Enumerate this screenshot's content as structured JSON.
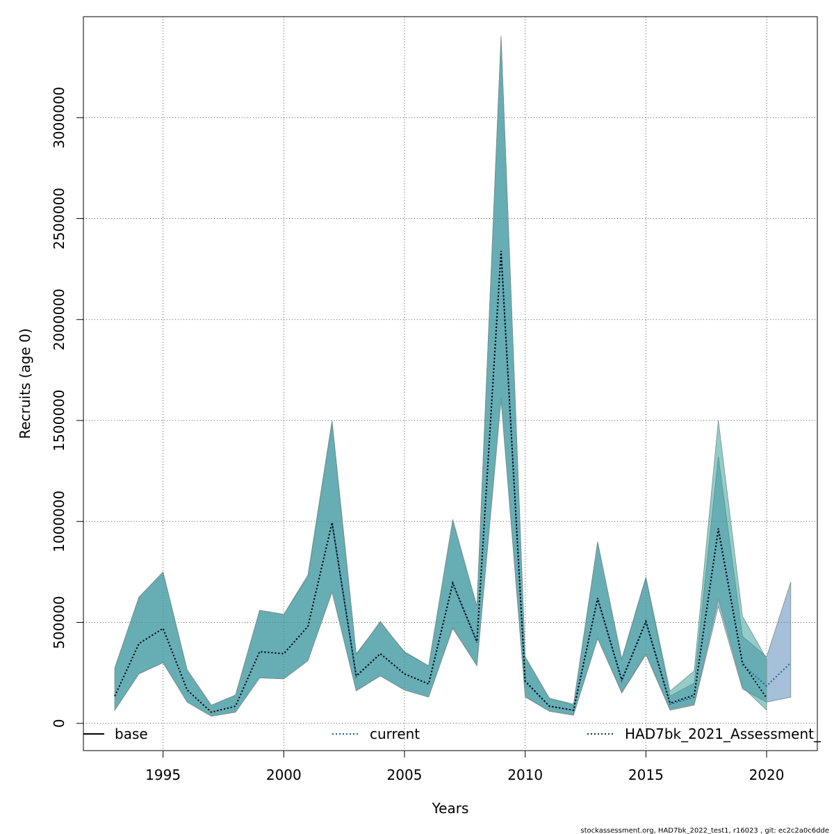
{
  "chart_data": {
    "type": "area",
    "title": "",
    "xlabel": "Years",
    "ylabel": "Recruits (age 0)",
    "xlim": [
      1991.7,
      2022.1
    ],
    "ylim": [
      -135000,
      3500000
    ],
    "x_ticks": [
      1995,
      2000,
      2005,
      2010,
      2015,
      2020
    ],
    "y_ticks": [
      0,
      500000,
      1000000,
      1500000,
      2000000,
      2500000,
      3000000
    ],
    "grid": true,
    "legend_position": "bottom",
    "series": [
      {
        "name": "base",
        "color": "#2a9a8f",
        "line_style": "dotted",
        "x": [
          1993,
          1994,
          1995,
          1996,
          1997,
          1998,
          1999,
          2000,
          2001,
          2002,
          2003,
          2004,
          2005,
          2006,
          2007,
          2008,
          2009,
          2010,
          2011,
          2012,
          2013,
          2014,
          2015,
          2016,
          2017,
          2018,
          2019,
          2020
        ],
        "values": [
          135000,
          395000,
          470000,
          165000,
          55000,
          85000,
          355000,
          345000,
          480000,
          995000,
          235000,
          345000,
          245000,
          195000,
          695000,
          405000,
          2340000,
          210000,
          85000,
          65000,
          620000,
          215000,
          505000,
          100000,
          140000,
          965000,
          300000,
          125000
        ],
        "lower": [
          65000,
          245000,
          300000,
          105000,
          35000,
          55000,
          225000,
          220000,
          310000,
          650000,
          165000,
          235000,
          165000,
          130000,
          475000,
          285000,
          1610000,
          135000,
          60000,
          42000,
          420000,
          155000,
          345000,
          70000,
          95000,
          615000,
          180000,
          65000
        ],
        "upper": [
          275000,
          625000,
          750000,
          265000,
          90000,
          140000,
          560000,
          540000,
          735000,
          1500000,
          345000,
          500000,
          355000,
          285000,
          1005000,
          580000,
          3405000,
          330000,
          125000,
          95000,
          895000,
          320000,
          725000,
          160000,
          260000,
          1500000,
          530000,
          320000
        ]
      },
      {
        "name": "current",
        "color": "#5b84b1",
        "line_style": "dotted",
        "x": [
          1993,
          1994,
          1995,
          1996,
          1997,
          1998,
          1999,
          2000,
          2001,
          2002,
          2003,
          2004,
          2005,
          2006,
          2007,
          2008,
          2009,
          2010,
          2011,
          2012,
          2013,
          2014,
          2015,
          2016,
          2017,
          2018,
          2019,
          2020,
          2021
        ],
        "values": [
          135000,
          395000,
          470000,
          165000,
          55000,
          85000,
          355000,
          345000,
          480000,
          990000,
          230000,
          345000,
          245000,
          195000,
          690000,
          400000,
          2330000,
          205000,
          85000,
          65000,
          615000,
          210000,
          500000,
          95000,
          130000,
          955000,
          290000,
          185000,
          300000
        ],
        "lower": [
          65000,
          245000,
          300000,
          105000,
          35000,
          55000,
          225000,
          220000,
          310000,
          650000,
          160000,
          235000,
          165000,
          130000,
          470000,
          285000,
          1600000,
          130000,
          60000,
          40000,
          420000,
          150000,
          340000,
          65000,
          90000,
          580000,
          170000,
          105000,
          130000
        ],
        "upper": [
          275000,
          625000,
          750000,
          265000,
          90000,
          140000,
          560000,
          540000,
          725000,
          1490000,
          340000,
          505000,
          350000,
          285000,
          1010000,
          580000,
          3400000,
          330000,
          125000,
          90000,
          900000,
          315000,
          720000,
          135000,
          200000,
          1320000,
          430000,
          330000,
          700000
        ]
      },
      {
        "name": "HAD7bk_2021_Assessment_",
        "color": "#1a5550",
        "line_style": "dotted"
      }
    ]
  },
  "footer": "stockassessment.org, HAD7bk_2022_test1, r16023 , git: ec2c2a0c6dde"
}
